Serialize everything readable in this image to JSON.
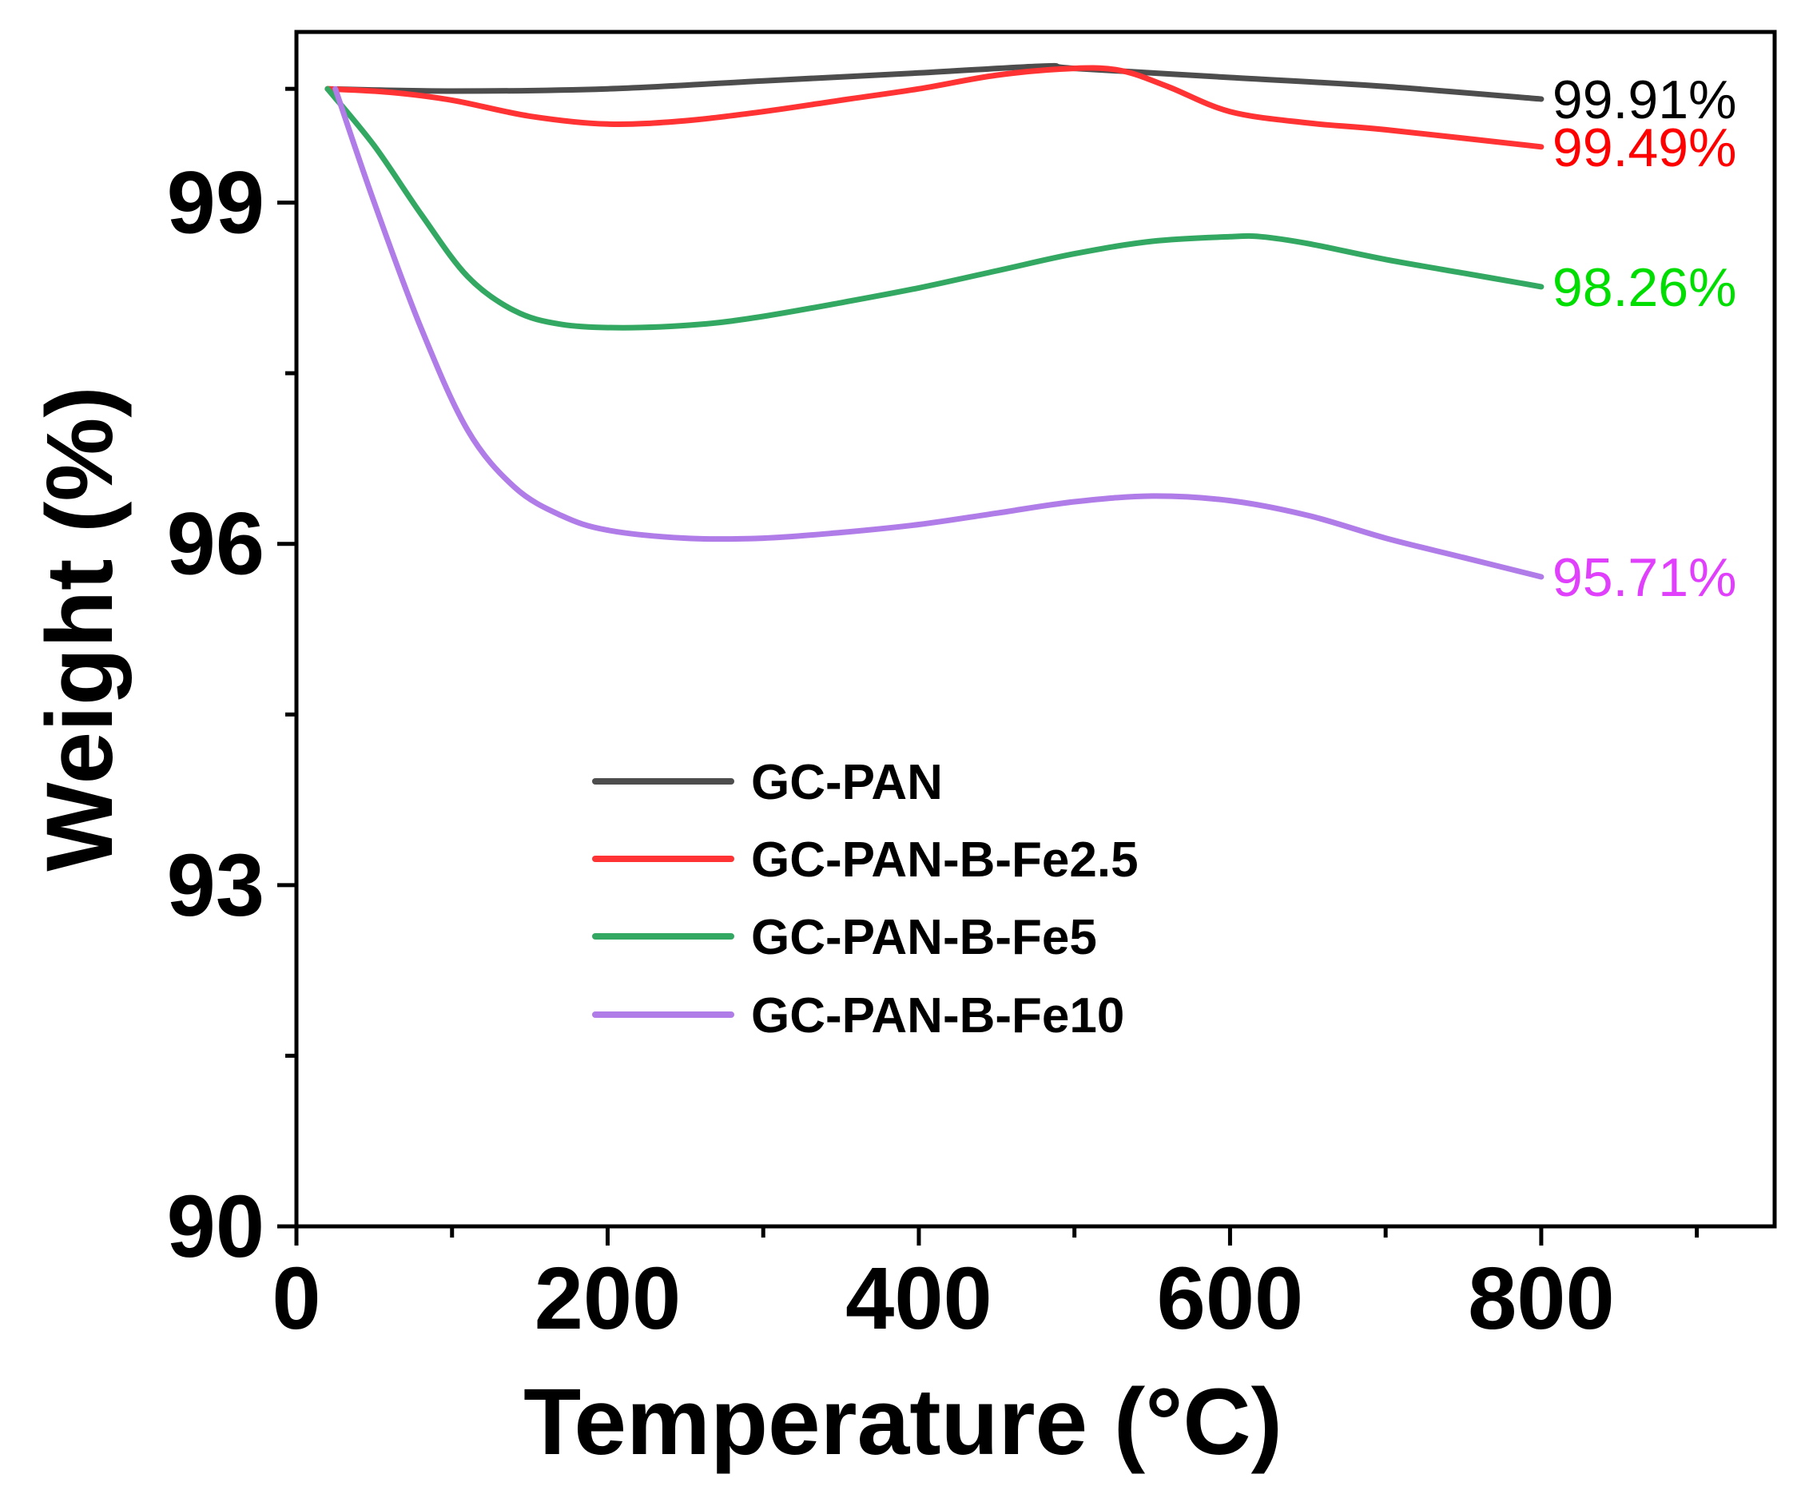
{
  "chart_data": {
    "type": "line",
    "title": "",
    "xlabel": "Temperature (°C)",
    "ylabel": "Weight (%)",
    "xlim": [
      0,
      950
    ],
    "ylim": [
      90,
      100.5
    ],
    "x_ticks": [
      0,
      200,
      400,
      600,
      800
    ],
    "x_tick_labels": [
      "0",
      "200",
      "400",
      "600",
      "800"
    ],
    "x_minor_ticks": [
      100,
      300,
      500,
      700,
      900
    ],
    "y_ticks": [
      90,
      93,
      96,
      99
    ],
    "y_tick_labels": [
      "90",
      "93",
      "96",
      "99"
    ],
    "y_minor_ticks": [
      91.5,
      94.5,
      97.5,
      100
    ],
    "grid": false,
    "legend_position": "center-left",
    "series": [
      {
        "name": "GC-PAN",
        "color": "#4d4d4d",
        "end_label": "99.91%",
        "end_label_color": "#000000",
        "x": [
          20,
          100,
          200,
          300,
          400,
          480,
          500,
          600,
          700,
          800
        ],
        "y": [
          100.0,
          99.98,
          100.0,
          100.07,
          100.14,
          100.2,
          100.18,
          100.1,
          100.02,
          99.91
        ]
      },
      {
        "name": "GC-PAN-B-Fe2.5",
        "color": "#ff3333",
        "end_label": "99.49%",
        "end_label_color": "#ff0000",
        "x": [
          20,
          60,
          100,
          150,
          200,
          250,
          300,
          350,
          400,
          450,
          500,
          530,
          560,
          600,
          650,
          700,
          800
        ],
        "y": [
          100.0,
          99.97,
          99.9,
          99.76,
          99.69,
          99.72,
          99.8,
          99.9,
          100.0,
          100.12,
          100.18,
          100.16,
          100.02,
          99.8,
          99.7,
          99.64,
          99.49
        ]
      },
      {
        "name": "GC-PAN-B-Fe5",
        "color": "#33a862",
        "end_label": "98.26%",
        "end_label_color": "#00dd00",
        "x": [
          20,
          50,
          80,
          110,
          140,
          170,
          210,
          260,
          300,
          350,
          400,
          450,
          500,
          550,
          600,
          620,
          650,
          700,
          750,
          800
        ],
        "y": [
          100.0,
          99.5,
          98.9,
          98.35,
          98.05,
          97.93,
          97.9,
          97.93,
          98.0,
          98.12,
          98.25,
          98.4,
          98.55,
          98.66,
          98.7,
          98.7,
          98.64,
          98.5,
          98.38,
          98.26
        ]
      },
      {
        "name": "GC-PAN-B-Fe10",
        "color": "#b07ce8",
        "end_label": "95.71%",
        "end_label_color": "#e040fb",
        "x": [
          25,
          50,
          80,
          110,
          140,
          170,
          200,
          250,
          300,
          350,
          400,
          450,
          500,
          550,
          600,
          650,
          700,
          750,
          800
        ],
        "y": [
          100.0,
          99.0,
          97.9,
          97.0,
          96.5,
          96.25,
          96.12,
          96.05,
          96.05,
          96.1,
          96.17,
          96.27,
          96.37,
          96.42,
          96.38,
          96.25,
          96.05,
          95.88,
          95.71
        ]
      }
    ]
  }
}
